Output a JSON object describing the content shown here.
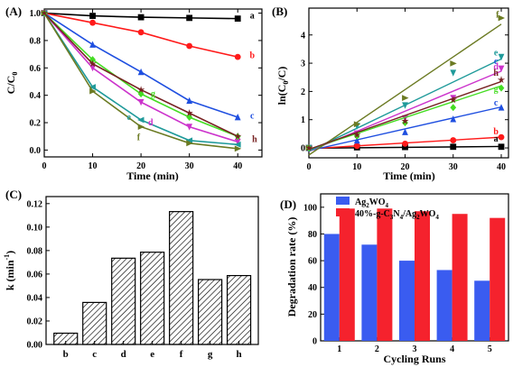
{
  "chart_data": [
    {
      "panel": "(A)",
      "type": "line",
      "xlabel": "Time (min)",
      "ylabel_main": "C/C",
      "ylabel_sub": "0",
      "xlim": [
        0,
        45
      ],
      "ylim": [
        -0.05,
        1.03
      ],
      "xticks": [
        0,
        10,
        20,
        30,
        40
      ],
      "yticks": [
        0.0,
        0.2,
        0.4,
        0.6,
        0.8,
        1.0
      ],
      "x": [
        0,
        10,
        20,
        30,
        40
      ],
      "series": [
        {
          "name": "a",
          "color": "#000000",
          "marker": "square",
          "values": [
            1.0,
            0.98,
            0.97,
            0.965,
            0.96
          ]
        },
        {
          "name": "b",
          "color": "#ff1a1a",
          "marker": "circle",
          "values": [
            1.0,
            0.93,
            0.86,
            0.76,
            0.68
          ]
        },
        {
          "name": "c",
          "color": "#1f4fe0",
          "marker": "triangle-up",
          "values": [
            1.0,
            0.77,
            0.57,
            0.36,
            0.24
          ]
        },
        {
          "name": "d",
          "color": "#cc33cc",
          "marker": "triangle-down",
          "values": [
            1.0,
            0.6,
            0.35,
            0.17,
            0.06
          ]
        },
        {
          "name": "e",
          "color": "#1f9a9a",
          "marker": "triangle-left",
          "values": [
            1.0,
            0.46,
            0.22,
            0.07,
            0.04
          ]
        },
        {
          "name": "f",
          "color": "#6b7a22",
          "marker": "triangle-right",
          "values": [
            1.0,
            0.43,
            0.17,
            0.05,
            0.01
          ]
        },
        {
          "name": "g",
          "color": "#44dd22",
          "marker": "diamond",
          "values": [
            1.0,
            0.66,
            0.41,
            0.24,
            0.1
          ]
        },
        {
          "name": "h",
          "color": "#772222",
          "marker": "star",
          "values": [
            1.0,
            0.63,
            0.44,
            0.27,
            0.1
          ]
        }
      ],
      "labels": [
        {
          "text": "a",
          "x": 43,
          "y": 0.98
        },
        {
          "text": "b",
          "x": 43,
          "y": 0.69
        },
        {
          "text": "c",
          "x": 43,
          "y": 0.25
        },
        {
          "text": "h",
          "x": 43.5,
          "y": 0.08
        },
        {
          "text": "g",
          "x": 22.5,
          "y": 0.41
        },
        {
          "text": "e",
          "x": 17.5,
          "y": 0.24
        },
        {
          "text": "d",
          "x": 22,
          "y": 0.2
        },
        {
          "text": "f",
          "x": 19.5,
          "y": 0.09
        }
      ]
    },
    {
      "panel": "(B)",
      "type": "scatter",
      "xlabel": "Time (min)",
      "ylabel_main": "ln(C",
      "ylabel_sub": "0",
      "ylabel_end": "/C)",
      "xlim": [
        0,
        41.5
      ],
      "ylim": [
        -0.35,
        4.95
      ],
      "xticks": [
        0,
        10,
        20,
        30,
        40
      ],
      "yticks": [
        0,
        1,
        2,
        3,
        4
      ],
      "x": [
        0,
        10,
        20,
        30,
        40
      ],
      "series": [
        {
          "name": "a",
          "color": "#000000",
          "marker": "square",
          "values": [
            0,
            0.02,
            0.03,
            0.04,
            0.04
          ],
          "fit": [
            -0.01,
            0.05
          ]
        },
        {
          "name": "b",
          "color": "#ff1a1a",
          "marker": "circle",
          "values": [
            0,
            0.07,
            0.15,
            0.27,
            0.38
          ],
          "fit": [
            -0.03,
            0.38
          ]
        },
        {
          "name": "c",
          "color": "#1f4fe0",
          "marker": "triangle-up",
          "values": [
            0,
            0.26,
            0.56,
            1.02,
            1.43
          ],
          "fit": [
            -0.1,
            1.45
          ]
        },
        {
          "name": "d",
          "color": "#cc33cc",
          "marker": "triangle-down",
          "values": [
            0,
            0.51,
            1.05,
            1.77,
            2.81
          ],
          "fit": [
            -0.12,
            2.72
          ]
        },
        {
          "name": "e",
          "color": "#1f9a9a",
          "marker": "triangle-down",
          "values": [
            0,
            0.78,
            1.51,
            2.66,
            3.22
          ],
          "fit": [
            -0.12,
            3.15
          ]
        },
        {
          "name": "f",
          "color": "#6b7a22",
          "marker": "triangle-right",
          "values": [
            0,
            0.84,
            1.77,
            2.99,
            4.6
          ],
          "fit": [
            -0.25,
            4.38
          ]
        },
        {
          "name": "g",
          "color": "#44dd22",
          "marker": "diamond",
          "values": [
            0,
            0.42,
            0.89,
            1.43,
            2.12
          ],
          "fit": [
            -0.05,
            2.2
          ]
        },
        {
          "name": "h",
          "color": "#772222",
          "marker": "star",
          "values": [
            0,
            0.46,
            0.95,
            1.7,
            2.41
          ],
          "fit": [
            -0.05,
            2.35
          ]
        }
      ],
      "labels": [
        {
          "text": "f",
          "x": 39.2,
          "y": 4.62
        },
        {
          "text": "e",
          "x": 38.9,
          "y": 3.27
        },
        {
          "text": "c",
          "x": 38.9,
          "y": 2.97
        },
        {
          "text": "d",
          "x": 38.9,
          "y": 2.78
        },
        {
          "text": "h",
          "x": 38.9,
          "y": 2.55
        },
        {
          "text": "g",
          "x": 38.9,
          "y": 2.0
        },
        {
          "text": "c",
          "x": 38.9,
          "y": 1.5
        },
        {
          "text": "b",
          "x": 38.9,
          "y": 0.48
        },
        {
          "text": "a",
          "x": 38.9,
          "y": 0.22
        }
      ]
    },
    {
      "panel": "(C)",
      "type": "bar",
      "ylabel_main": "k (min",
      "ylabel_sup": "-1",
      "ylabel_end": ")",
      "categories": [
        "b",
        "c",
        "d",
        "e",
        "f",
        "g",
        "h"
      ],
      "values": [
        0.0096,
        0.0358,
        0.0735,
        0.0786,
        0.1132,
        0.0553,
        0.0587
      ],
      "ylim": [
        0,
        0.126
      ],
      "yticks": [
        "0.00",
        "0.02",
        "0.04",
        "0.06",
        "0.08",
        "0.10",
        "0.12"
      ],
      "ytick_values": [
        0,
        0.02,
        0.04,
        0.06,
        0.08,
        0.1,
        0.12
      ]
    },
    {
      "panel": "(D)",
      "type": "bar",
      "xlabel": "Cycling Runs",
      "ylabel": "Degradation rate (%)",
      "categories": [
        "1",
        "2",
        "3",
        "4",
        "5"
      ],
      "ylim": [
        0,
        110
      ],
      "yticks": [
        0,
        20,
        40,
        60,
        80,
        100
      ],
      "series": [
        {
          "name": "Ag2WO4",
          "color": "#3a5cf0",
          "values": [
            80,
            72,
            60,
            53,
            45
          ]
        },
        {
          "name": "40%-g-C3N4/Ag2WO4",
          "color": "#f5222d",
          "values": [
            99,
            99,
            97,
            95,
            92
          ]
        }
      ],
      "legend": "top"
    }
  ]
}
